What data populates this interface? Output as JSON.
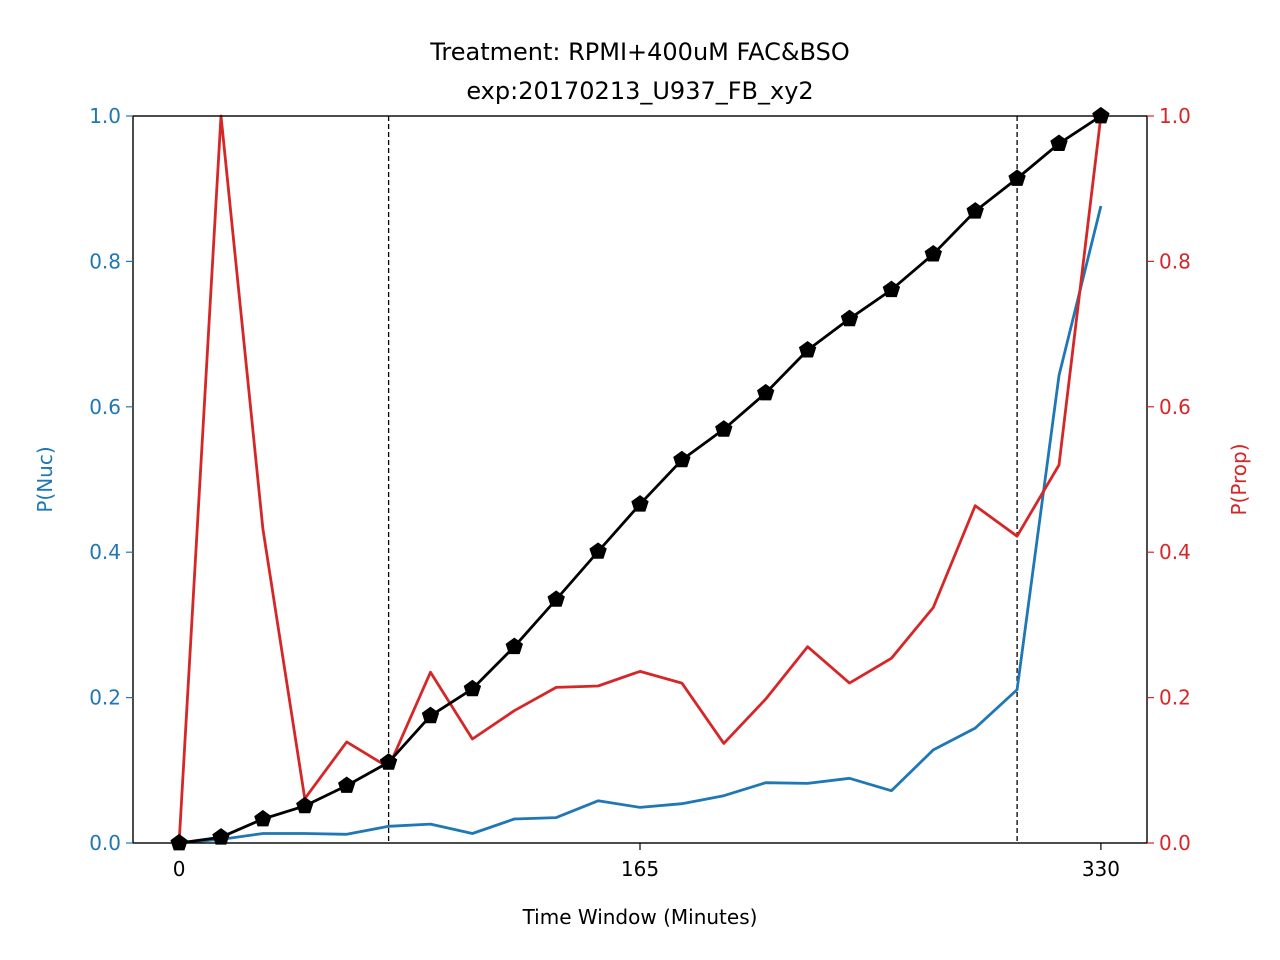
{
  "chart_data": {
    "type": "line",
    "title": "Treatment: RPMI+400uM FAC&BSO",
    "subtitle": "exp:20170213_U937_FB_xy2",
    "xlabel": "Time Window (Minutes)",
    "ylabel_left": "P(Nuc)",
    "ylabel_right": "P(Prop)",
    "xlim": [
      -16.5,
      346.5
    ],
    "ylim_left": [
      0,
      1
    ],
    "ylim_right": [
      0,
      1
    ],
    "x_ticks": [
      0,
      165,
      330
    ],
    "y_ticks_left": [
      "0.0",
      "0.2",
      "0.4",
      "0.6",
      "0.8",
      "1.0"
    ],
    "y_ticks_right": [
      "0.0",
      "0.2",
      "0.4",
      "0.6",
      "0.8",
      "1.0"
    ],
    "vlines": [
      75,
      300
    ],
    "grid": false,
    "colors": {
      "left_axis": "#1f77b4",
      "right_axis": "#d62728",
      "cumulative": "#000000"
    },
    "x": [
      0,
      15,
      30,
      45,
      60,
      75,
      90,
      105,
      120,
      135,
      150,
      165,
      180,
      195,
      210,
      225,
      240,
      255,
      270,
      285,
      300,
      315,
      330
    ],
    "series": [
      {
        "axis": "left",
        "color": "#1f77b4",
        "values": [
          0.0,
          0.005,
          0.013,
          0.013,
          0.012,
          0.023,
          0.026,
          0.013,
          0.033,
          0.035,
          0.058,
          0.049,
          0.054,
          0.065,
          0.083,
          0.082,
          0.089,
          0.072,
          0.128,
          0.158,
          0.211,
          0.643,
          0.876
        ]
      },
      {
        "axis": "right",
        "color": "#d62728",
        "values": [
          0.0,
          1.0,
          0.432,
          0.061,
          0.139,
          0.104,
          0.235,
          0.143,
          0.182,
          0.214,
          0.216,
          0.236,
          0.22,
          0.137,
          0.198,
          0.27,
          0.22,
          0.254,
          0.324,
          0.464,
          0.422,
          0.52,
          1.0
        ]
      },
      {
        "axis": "left",
        "color": "#000000",
        "marker": "pentagon",
        "values": [
          0.0,
          0.008,
          0.033,
          0.051,
          0.079,
          0.111,
          0.175,
          0.212,
          0.27,
          0.335,
          0.401,
          0.466,
          0.527,
          0.569,
          0.619,
          0.678,
          0.721,
          0.761,
          0.81,
          0.869,
          0.914,
          0.962,
          1.0
        ]
      }
    ]
  }
}
